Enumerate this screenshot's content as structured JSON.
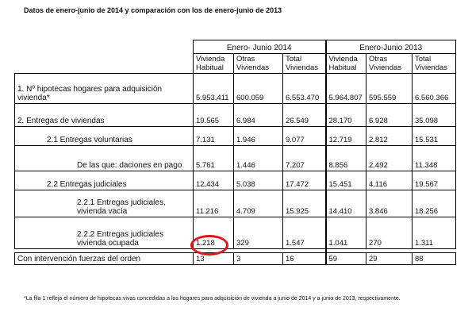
{
  "title": "Datos de enero-junio de 2014 y comparación con los de enero-junio de 2013",
  "groups": [
    "Enero- Junio 2014",
    "Enero-Junio 2013"
  ],
  "headers": [
    "Vivienda Habitual",
    "Otras Viviendas",
    "Total Viviendas",
    "Vivienda Habitual",
    "Otras Viviendas",
    "Total Viviendas"
  ],
  "rows": [
    {
      "label": "1. Nº hipotecas hogares para adquisición vivienda*",
      "values": [
        "5.953.411",
        "600.059",
        "6.553.470",
        "5.964.807",
        "595.559",
        "6.560.366"
      ]
    },
    {
      "label": "2. Entregas de viviendas",
      "values": [
        "19.565",
        "6.984",
        "26.549",
        "28.170",
        "6.928",
        "35.098"
      ]
    },
    {
      "label": "2.1 Entregas voluntarias",
      "values": [
        "7.131",
        "1.946",
        "9.077",
        "12.719",
        "2.812",
        "15.531"
      ]
    },
    {
      "label": "De las que: daciones en pago",
      "values": [
        "5.761",
        "1.446",
        "7.207",
        "8.856",
        "2.492",
        "11.348"
      ]
    },
    {
      "label": "2.2 Entregas judiciales",
      "values": [
        "12.434",
        "5.038",
        "17.472",
        "15.451",
        "4.116",
        "19.567"
      ]
    },
    {
      "label": "2.2.1 Entregas judiciales, vivienda vacía",
      "values": [
        "11.216",
        "4.709",
        "15.925",
        "14.410",
        "3.846",
        "18.256"
      ]
    },
    {
      "label": "2.2.2 Entregas judiciales vivienda ocupada",
      "values": [
        "1.218",
        "329",
        "1.547",
        "1.041",
        "270",
        "1.311"
      ]
    },
    {
      "label": "Con intervención fuerzas del orden",
      "values": [
        "13",
        "3",
        "16",
        "59",
        "29",
        "88"
      ]
    }
  ],
  "footnote": "*La fila 1 refleja el número de hipotecas vivas concedidas a los hogares para adquisición de vivienda a junio de 2014 y a junio de 2013, respectivamente.",
  "highlight_color": "#e0161b"
}
